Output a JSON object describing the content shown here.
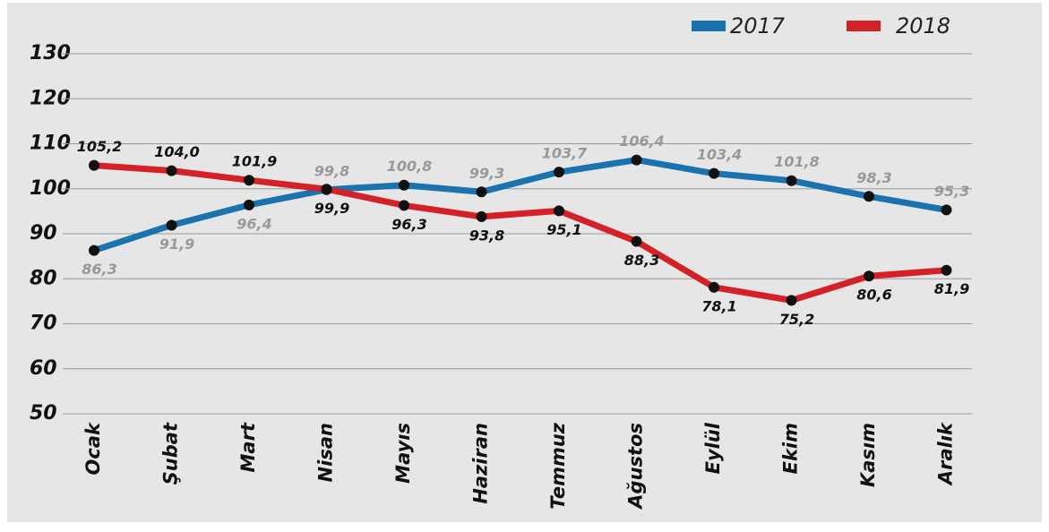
{
  "chart_data": {
    "type": "line",
    "categories": [
      "Ocak",
      "Şubat",
      "Mart",
      "Nisan",
      "Mayıs",
      "Haziran",
      "Temmuz",
      "Ağustos",
      "Eylül",
      "Ekim",
      "Kasım",
      "Aralık"
    ],
    "series": [
      {
        "name": "2017",
        "color": "#1a72ae",
        "label_color": "#999999",
        "values": [
          86.3,
          91.9,
          96.4,
          99.8,
          100.8,
          99.3,
          103.7,
          106.4,
          103.4,
          101.8,
          98.3,
          95.3
        ],
        "value_labels": [
          "86,3",
          "91,9",
          "96,4",
          "99,8",
          "100,8",
          "99,3",
          "103,7",
          "106,4",
          "103,4",
          "101,8",
          "98,3",
          "95,3"
        ]
      },
      {
        "name": "2018",
        "color": "#d42027",
        "label_color": "#111111",
        "values": [
          105.2,
          104.0,
          101.9,
          99.9,
          96.3,
          93.8,
          95.1,
          88.3,
          78.1,
          75.2,
          80.6,
          81.9
        ],
        "value_labels": [
          "105,2",
          "104,0",
          "101,9",
          "99,9",
          "96,3",
          "93,8",
          "95,1",
          "88,3",
          "78,1",
          "75,2",
          "80,6",
          "81,9"
        ]
      }
    ],
    "ylim": [
      50,
      130
    ],
    "yticks": [
      50,
      60,
      70,
      80,
      90,
      100,
      110,
      120,
      130
    ],
    "grid": true,
    "legend": "top-right"
  }
}
